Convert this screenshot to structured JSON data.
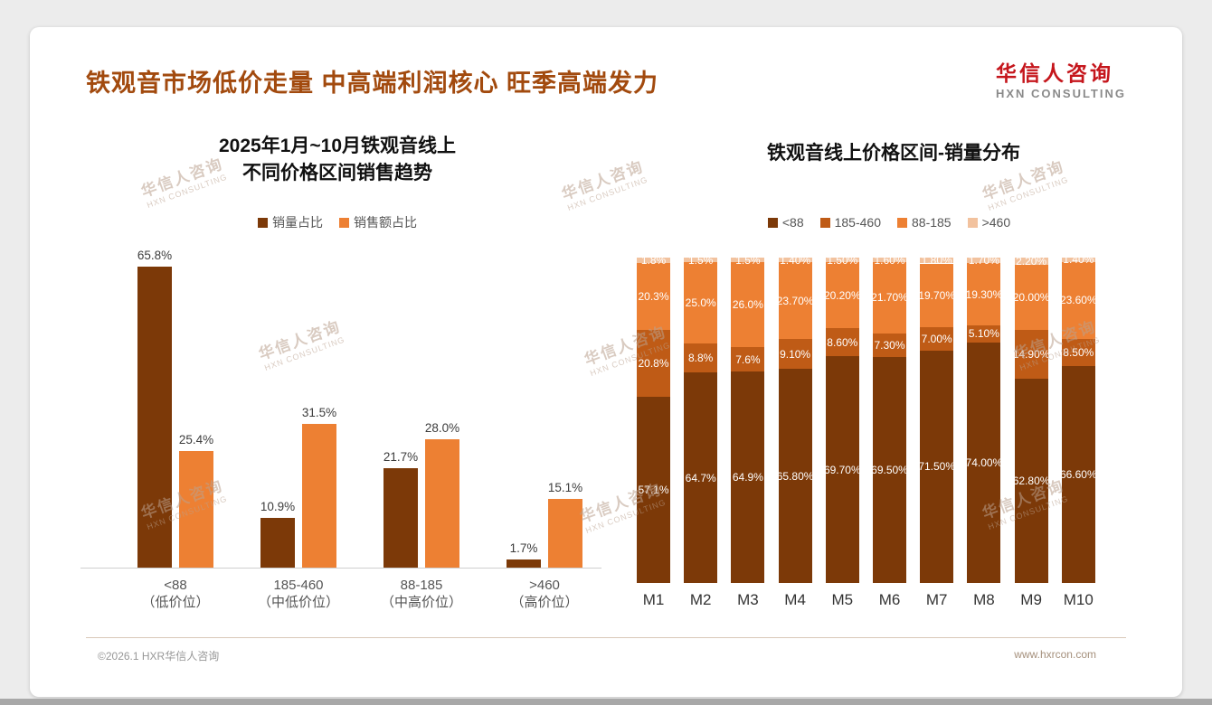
{
  "slide": {
    "title": "铁观音市场低价走量 中高端利润核心 旺季高端发力",
    "logo": {
      "cn": "华信人咨询",
      "en": "HXN CONSULTING"
    },
    "watermark": {
      "cn": "华信人咨询",
      "en": "HXN CONSULTING"
    },
    "footer": {
      "left": "©2026.1 HXR华信人咨询",
      "right": "www.hxrcon.com"
    }
  },
  "chart_data": [
    {
      "type": "bar",
      "title": "2025年1月~10月铁观音线上不同价格区间销售趋势",
      "title_lines": [
        "2025年1月~10月铁观音线上",
        "不同价格区间销售趋势"
      ],
      "categories": [
        {
          "line1": "<88",
          "line2": "（低价位）"
        },
        {
          "line1": "185-460",
          "line2": "（中低价位）"
        },
        {
          "line1": "88-185",
          "line2": "（中高价位）"
        },
        {
          "line1": ">460",
          "line2": "（高价位）"
        }
      ],
      "series": [
        {
          "name": "销量占比",
          "color": "#7c3908",
          "values": [
            65.8,
            10.9,
            21.7,
            1.7
          ],
          "labels": [
            "65.8%",
            "10.9%",
            "21.7%",
            "1.7%"
          ]
        },
        {
          "name": "销售额占比",
          "color": "#ed8033",
          "values": [
            25.4,
            31.5,
            28.0,
            15.1
          ],
          "labels": [
            "25.4%",
            "31.5%",
            "28.0%",
            "15.1%"
          ]
        }
      ],
      "ylim": [
        0,
        70
      ],
      "grid": false,
      "legend_position": "top"
    },
    {
      "type": "bar",
      "subtype": "stacked-100",
      "title": "铁观音线上价格区间-销量分布",
      "categories": [
        "M1",
        "M2",
        "M3",
        "M4",
        "M5",
        "M6",
        "M7",
        "M8",
        "M9",
        "M10"
      ],
      "series": [
        {
          "name": "<88",
          "color": "#7c3908",
          "values": [
            57.1,
            64.7,
            64.9,
            65.8,
            69.7,
            69.5,
            71.5,
            74.0,
            62.8,
            66.6
          ],
          "labels": [
            "57.1%",
            "64.7%",
            "64.9%",
            "65.80%",
            "69.70%",
            "69.50%",
            "71.50%",
            "74.00%",
            "62.80%",
            "66.60%"
          ]
        },
        {
          "name": "185-460",
          "color": "#bf5b16",
          "values": [
            20.8,
            8.8,
            7.6,
            9.1,
            8.6,
            7.3,
            7.0,
            5.1,
            14.9,
            8.5
          ],
          "labels": [
            "20.8%",
            "8.8%",
            "7.6%",
            "9.10%",
            "8.60%",
            "7.30%",
            "7.00%",
            "5.10%",
            "14.90%",
            "8.50%"
          ]
        },
        {
          "name": "88-185",
          "color": "#ed8033",
          "values": [
            20.3,
            25.0,
            26.0,
            23.7,
            20.2,
            21.7,
            19.7,
            19.3,
            20.0,
            23.6
          ],
          "labels": [
            "20.3%",
            "25.0%",
            "26.0%",
            "23.70%",
            "20.20%",
            "21.70%",
            "19.70%",
            "19.30%",
            "20.00%",
            "23.60%"
          ]
        },
        {
          "name": ">460",
          "color": "#f2c29e",
          "values": [
            1.8,
            1.5,
            1.5,
            1.4,
            1.5,
            1.6,
            1.8,
            1.7,
            2.2,
            1.4
          ],
          "labels": [
            "1.8%",
            "1.5%",
            "1.5%",
            "1.40%",
            "1.50%",
            "1.60%",
            "1.80%",
            "1.70%",
            "2.20%",
            "1.40%"
          ]
        }
      ],
      "ylim": [
        0,
        100
      ],
      "legend_position": "top"
    }
  ]
}
